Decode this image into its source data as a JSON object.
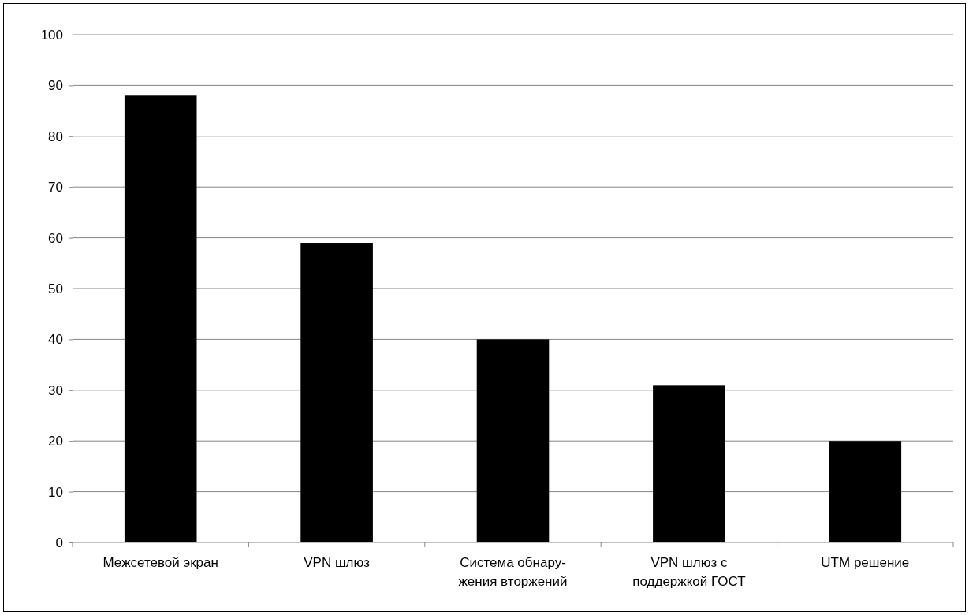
{
  "chart_data": {
    "type": "bar",
    "categories": [
      "Межсетевой экран",
      "VPN  шлюз",
      "Система обнару-\nжения вторжений",
      "VPN  шлюз с\nподдержкой ГОСТ",
      "UTM решение"
    ],
    "values": [
      88,
      59,
      40,
      31,
      20
    ],
    "color": "#000000",
    "ylim": [
      0,
      100
    ],
    "yticks": [
      0,
      10,
      20,
      30,
      40,
      50,
      60,
      70,
      80,
      90,
      100
    ],
    "grid": "y"
  }
}
